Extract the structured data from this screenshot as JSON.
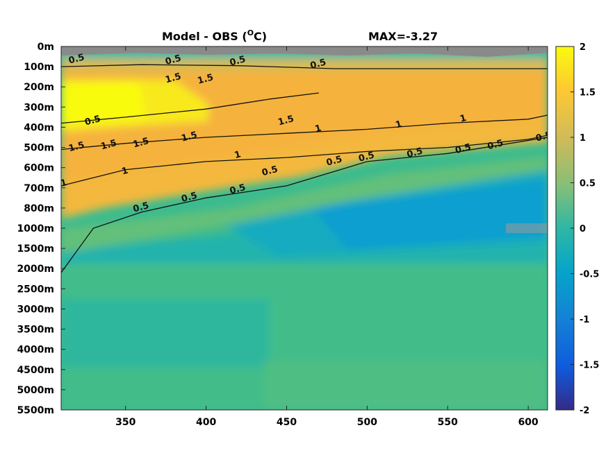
{
  "chart_data": {
    "type": "heatmap",
    "title_left": "Model - OBS (",
    "title_degree": "O",
    "title_unit": "C)",
    "title_right": "MAX=-3.27",
    "x_ticks": [
      350,
      400,
      450,
      500,
      550,
      600
    ],
    "x_range": [
      310,
      612
    ],
    "y_tick_labels": [
      "0m",
      "100m",
      "200m",
      "300m",
      "400m",
      "500m",
      "600m",
      "700m",
      "800m",
      "1000m",
      "1500m",
      "2000m",
      "2500m",
      "3000m",
      "3500m",
      "4000m",
      "4500m",
      "5000m",
      "5500m"
    ],
    "colorbar": {
      "range": [
        -2,
        2
      ],
      "ticks": [
        2,
        1.5,
        1,
        0.5,
        0,
        -0.5,
        -1,
        -1.5,
        -2
      ],
      "colormap": "parula"
    },
    "field_description": "Temperature difference (model minus observations) by depth level vs x; warm (+1.5 to +2) in 150-400m near x 310-350, +1 band thinning eastward, near zero (-0.3 to 0) at 800-1500m, about +0.2 to +0.4 at depth, grey masked near surface.",
    "contour_levels": [
      1.5,
      1,
      0.5
    ],
    "contours": [
      {
        "level": 1.5,
        "points": [
          [
            310,
            3.8
          ],
          [
            350,
            3.5
          ],
          [
            400,
            3.1
          ],
          [
            440,
            2.6
          ],
          [
            470,
            2.3
          ]
        ]
      },
      {
        "level": 1.5,
        "points": [
          [
            310,
            5.1
          ],
          [
            350,
            4.8
          ],
          [
            400,
            4.5
          ],
          [
            450,
            4.3
          ],
          [
            500,
            4.1
          ],
          [
            550,
            3.8
          ],
          [
            600,
            3.6
          ],
          [
            612,
            3.4
          ]
        ]
      },
      {
        "level": 1,
        "points": [
          [
            310,
            6.9
          ],
          [
            350,
            6.1
          ],
          [
            400,
            5.7
          ],
          [
            450,
            5.5
          ],
          [
            500,
            5.2
          ],
          [
            550,
            5.0
          ],
          [
            600,
            4.6
          ],
          [
            612,
            4.4
          ]
        ]
      },
      {
        "level": 0.5,
        "points": [
          [
            310,
            11.2
          ],
          [
            330,
            9.0
          ],
          [
            360,
            8.2
          ],
          [
            400,
            7.5
          ],
          [
            450,
            6.9
          ],
          [
            500,
            5.7
          ],
          [
            550,
            5.3
          ],
          [
            612,
            4.5
          ]
        ]
      },
      {
        "level": 0.5,
        "points": [
          [
            310,
            1.0
          ],
          [
            360,
            0.9
          ],
          [
            420,
            0.95
          ],
          [
            480,
            1.1
          ],
          [
            540,
            1.1
          ],
          [
            612,
            1.1
          ]
        ]
      }
    ],
    "contour_labels": [
      {
        "text": "0.5",
        "x": 320,
        "y": 0.75
      },
      {
        "text": "0.5",
        "x": 380,
        "y": 0.8
      },
      {
        "text": "0.5",
        "x": 420,
        "y": 0.85
      },
      {
        "text": "0.5",
        "x": 470,
        "y": 1.0
      },
      {
        "text": "1.5",
        "x": 380,
        "y": 1.7
      },
      {
        "text": "1.5",
        "x": 400,
        "y": 1.75
      },
      {
        "text": "0.5",
        "x": 330,
        "y": 3.8
      },
      {
        "text": "1.5",
        "x": 320,
        "y": 5.1
      },
      {
        "text": "1.5",
        "x": 340,
        "y": 5.0
      },
      {
        "text": "1.5",
        "x": 360,
        "y": 4.9
      },
      {
        "text": "1.5",
        "x": 390,
        "y": 4.6
      },
      {
        "text": "1.5",
        "x": 450,
        "y": 3.8
      },
      {
        "text": "1",
        "x": 470,
        "y": 4.2
      },
      {
        "text": "1",
        "x": 520,
        "y": 4.0
      },
      {
        "text": "1",
        "x": 560,
        "y": 3.7
      },
      {
        "text": "1",
        "x": 312,
        "y": 6.9
      },
      {
        "text": "1",
        "x": 350,
        "y": 6.3
      },
      {
        "text": "1",
        "x": 420,
        "y": 5.5
      },
      {
        "text": "0.5",
        "x": 440,
        "y": 6.3
      },
      {
        "text": "0.5",
        "x": 480,
        "y": 5.8
      },
      {
        "text": "0.5",
        "x": 500,
        "y": 5.6
      },
      {
        "text": "0.5",
        "x": 530,
        "y": 5.4
      },
      {
        "text": "0.5",
        "x": 560,
        "y": 5.2
      },
      {
        "text": "0.5",
        "x": 580,
        "y": 5.0
      },
      {
        "text": "0.5",
        "x": 610,
        "y": 4.6
      },
      {
        "text": "0.5",
        "x": 360,
        "y": 8.1
      },
      {
        "text": "0.5",
        "x": 390,
        "y": 7.6
      },
      {
        "text": "0.5",
        "x": 420,
        "y": 7.2
      }
    ]
  }
}
